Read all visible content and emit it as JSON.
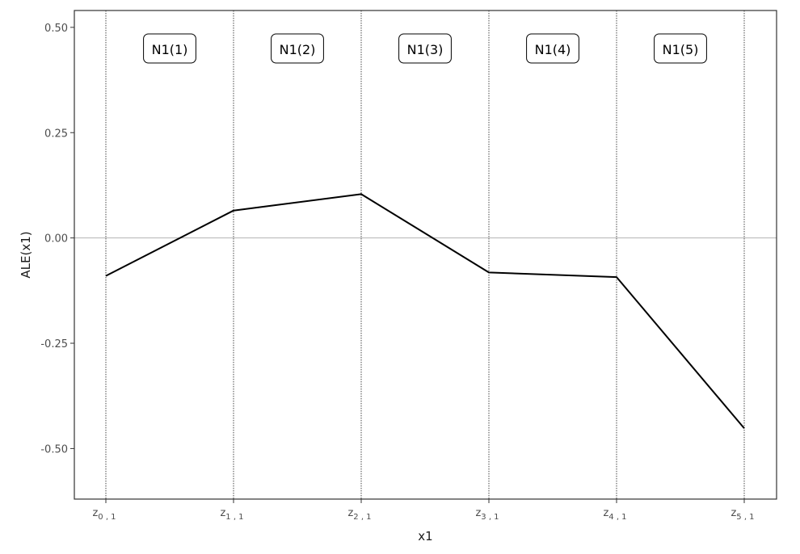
{
  "chart_data": {
    "type": "line",
    "xlabel": "x1",
    "ylabel": "ALE(x1)",
    "ylim": [
      -0.62,
      0.54
    ],
    "yticks": [
      0.5,
      0.25,
      0.0,
      -0.25,
      -0.5
    ],
    "ytick_labels": [
      "0.50",
      "0.25",
      "0.00",
      "-0.25",
      "-0.50"
    ],
    "xticks": [
      {
        "base": "z",
        "sub": "0 , 1"
      },
      {
        "base": "z",
        "sub": "1 , 1"
      },
      {
        "base": "z",
        "sub": "2 , 1"
      },
      {
        "base": "z",
        "sub": "3 , 1"
      },
      {
        "base": "z",
        "sub": "4 , 1"
      },
      {
        "base": "z",
        "sub": "5 , 1"
      }
    ],
    "series": [
      {
        "values": [
          -0.09,
          0.065,
          0.104,
          -0.082,
          -0.093,
          -0.452
        ]
      }
    ],
    "interval_labels": [
      "N1(1)",
      "N1(2)",
      "N1(3)",
      "N1(4)",
      "N1(5)"
    ],
    "grid": false,
    "zero_line": true,
    "colors": {
      "line": "#000000",
      "boundary": "#8c8c8c",
      "zero_line": "#b3b3b3",
      "frame": "#333333"
    }
  }
}
